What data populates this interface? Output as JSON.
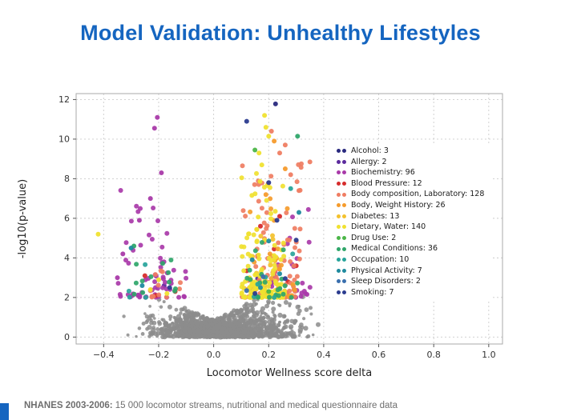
{
  "title": "Model Validation: Unhealthy Lifestyles",
  "footer": {
    "label": "NHANES 2003-2006:",
    "text": " 15 000 locomotor streams, nutritional and medical questionnaire data"
  },
  "colors": {
    "title": "#1565c0",
    "accent": "#1565c0",
    "background_points": "#8c8c8c",
    "grid": "#cccccc",
    "axis_text": "#333333"
  },
  "chart_data": {
    "type": "scatter",
    "title": "",
    "xlabel": "Locomotor Wellness score delta",
    "ylabel": "-log10(p-value)",
    "xlim": [
      -0.5,
      1.05
    ],
    "ylim": [
      -0.35,
      12.3
    ],
    "xticks": [
      -0.4,
      -0.2,
      0.0,
      0.2,
      0.4,
      0.6,
      0.8,
      1.0
    ],
    "yticks": [
      0,
      2,
      4,
      6,
      8,
      10,
      12
    ],
    "grid": true,
    "grid_style": "dashed",
    "legend_position": "center-right",
    "background": {
      "description": "non-significant tests",
      "color": "#8c8c8c",
      "n": 1500,
      "x_mean": 0.03,
      "x_sd": 0.12,
      "x_min": -0.34,
      "x_max": 0.38,
      "y_scale": 0.6,
      "y_base": 0.85,
      "y_slope": 7,
      "y_max": 2.75
    },
    "series": [
      {
        "label": "Alcohol: 3",
        "count": 3,
        "color": "#29297e",
        "points": [
          [
            0.225,
            11.78
          ],
          [
            0.13,
            2.45
          ],
          [
            0.19,
            2.1
          ]
        ]
      },
      {
        "label": "Allergy: 2",
        "count": 2,
        "color": "#5b2a9d",
        "points": [
          [
            -0.18,
            2.6
          ],
          [
            0.16,
            2.95
          ]
        ]
      },
      {
        "label": "Biochemistry: 96",
        "count": 96,
        "color": "#a93aa9",
        "points": [
          [
            -0.205,
            11.1
          ],
          [
            -0.215,
            10.55
          ],
          [
            -0.19,
            8.3
          ],
          [
            -0.23,
            7.0
          ],
          [
            -0.27,
            5.9
          ],
          [
            -0.33,
            4.2
          ],
          [
            -0.35,
            3.0
          ]
        ],
        "clusters": [
          {
            "n": 50,
            "x0": -0.36,
            "x1": -0.1,
            "ymin": 2.0,
            "ymax": 7.5,
            "pow": 2.2
          },
          {
            "n": 28,
            "x0": 0.2,
            "x1": 0.36,
            "ymin": 2.0,
            "ymax": 6.5,
            "pow": 2.0
          },
          {
            "n": 11,
            "x0": -0.3,
            "x1": -0.15,
            "ymin": 2.0,
            "ymax": 3.2,
            "pow": 1.5
          }
        ]
      },
      {
        "label": "Blood Pressure: 12",
        "count": 12,
        "color": "#d62c2c",
        "points": [
          [
            -0.25,
            3.1
          ],
          [
            -0.14,
            2.3
          ],
          [
            0.12,
            3.35
          ],
          [
            0.17,
            5.6
          ],
          [
            0.22,
            4.45
          ],
          [
            0.27,
            2.8
          ],
          [
            0.19,
            2.3
          ],
          [
            0.24,
            6.1
          ],
          [
            -0.21,
            2.1
          ],
          [
            0.14,
            2.6
          ],
          [
            0.3,
            3.6
          ],
          [
            0.16,
            4.1
          ]
        ]
      },
      {
        "label": "Body composition, Laboratory: 128",
        "count": 128,
        "color": "#ef7d62",
        "points": [
          [
            0.21,
            10.4
          ],
          [
            0.26,
            9.7
          ],
          [
            0.24,
            9.3
          ],
          [
            0.35,
            8.85
          ],
          [
            0.31,
            7.4
          ],
          [
            0.28,
            8.2
          ]
        ],
        "clusters": [
          {
            "n": 95,
            "x0": 0.1,
            "x1": 0.32,
            "ymin": 2.0,
            "ymax": 8.8,
            "pow": 2.6
          },
          {
            "n": 12,
            "x0": -0.26,
            "x1": -0.12,
            "ymin": 2.0,
            "ymax": 4.2,
            "pow": 2.0
          },
          {
            "n": 15,
            "x0": 0.12,
            "x1": 0.3,
            "ymin": 2.0,
            "ymax": 3.0,
            "pow": 1.3
          }
        ]
      },
      {
        "label": "Body, Weight History: 26",
        "count": 26,
        "color": "#f59b2c",
        "points": [
          [
            0.22,
            9.9
          ],
          [
            0.26,
            8.5
          ],
          [
            0.19,
            7.2
          ]
        ],
        "clusters": [
          {
            "n": 23,
            "x0": 0.13,
            "x1": 0.3,
            "ymin": 2.0,
            "ymax": 7.0,
            "pow": 2.0
          }
        ]
      },
      {
        "label": "Diabetes: 13",
        "count": 13,
        "color": "#f3c12d",
        "points": [],
        "clusters": [
          {
            "n": 13,
            "x0": 0.12,
            "x1": 0.27,
            "ymin": 2.0,
            "ymax": 6.0,
            "pow": 2.0
          }
        ]
      },
      {
        "label": "Dietary, Water: 140",
        "count": 140,
        "color": "#f0e130",
        "points": [
          [
            0.185,
            11.2
          ],
          [
            0.19,
            10.6
          ],
          [
            0.2,
            10.15
          ],
          [
            0.165,
            9.3
          ],
          [
            0.175,
            8.7
          ],
          [
            -0.42,
            5.2
          ],
          [
            -0.2,
            2.9
          ],
          [
            -0.23,
            2.4
          ],
          [
            -0.17,
            2.2
          ]
        ],
        "clusters": [
          {
            "n": 118,
            "x0": 0.1,
            "x1": 0.26,
            "ymin": 2.0,
            "ymax": 8.3,
            "pow": 2.4
          },
          {
            "n": 13,
            "x0": 0.12,
            "x1": 0.24,
            "ymin": 2.0,
            "ymax": 3.2,
            "pow": 1.2
          }
        ]
      },
      {
        "label": "Drug Use: 2",
        "count": 2,
        "color": "#4cb648",
        "points": [
          [
            0.15,
            9.45
          ],
          [
            0.2,
            2.3
          ]
        ]
      },
      {
        "label": "Medical Conditions: 36",
        "count": 36,
        "color": "#2fa66a",
        "points": [
          [
            0.305,
            10.15
          ],
          [
            -0.29,
            4.6
          ]
        ],
        "clusters": [
          {
            "n": 12,
            "x0": -0.3,
            "x1": -0.12,
            "ymin": 2.0,
            "ymax": 4.4,
            "pow": 1.8
          },
          {
            "n": 22,
            "x0": 0.12,
            "x1": 0.31,
            "ymin": 2.0,
            "ymax": 5.2,
            "pow": 2.0
          }
        ]
      },
      {
        "label": "Occupation: 10",
        "count": 10,
        "color": "#27a49b",
        "points": [
          [
            0.28,
            7.5
          ]
        ],
        "clusters": [
          {
            "n": 4,
            "x0": -0.32,
            "x1": -0.18,
            "ymin": 2.0,
            "ymax": 4.4,
            "pow": 1.6
          },
          {
            "n": 5,
            "x0": 0.13,
            "x1": 0.3,
            "ymin": 2.0,
            "ymax": 5.0,
            "pow": 1.8
          }
        ]
      },
      {
        "label": "Physical Activity: 7",
        "count": 7,
        "color": "#1f8a9e",
        "points": [
          [
            -0.3,
            4.5
          ],
          [
            -0.26,
            2.6
          ],
          [
            0.14,
            3.9
          ],
          [
            0.2,
            4.85
          ],
          [
            0.24,
            3.2
          ],
          [
            0.17,
            2.5
          ],
          [
            0.31,
            6.3
          ]
        ]
      },
      {
        "label": "Sleep Disorders: 2",
        "count": 2,
        "color": "#3a6fae",
        "points": [
          [
            0.12,
            2.35
          ],
          [
            0.18,
            3.05
          ]
        ]
      },
      {
        "label": "Smoking: 7",
        "count": 7,
        "color": "#2b3c8f",
        "points": [
          [
            0.12,
            10.9
          ],
          [
            0.2,
            7.8
          ],
          [
            0.23,
            5.9
          ],
          [
            0.3,
            4.9
          ],
          [
            -0.16,
            2.5
          ],
          [
            0.15,
            2.2
          ],
          [
            0.26,
            2.95
          ]
        ]
      }
    ]
  }
}
